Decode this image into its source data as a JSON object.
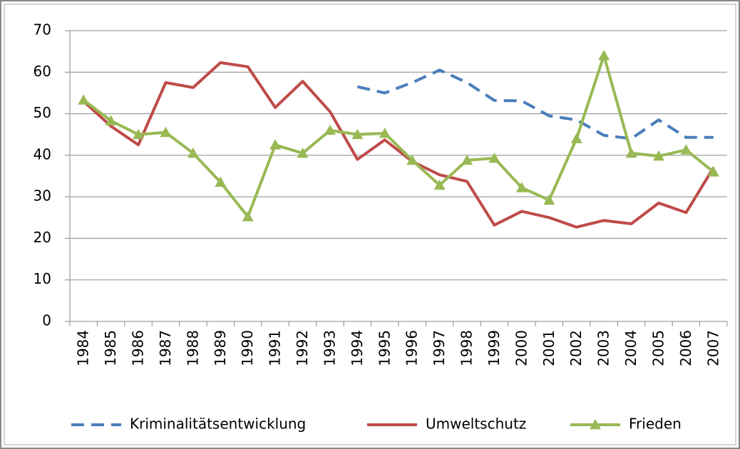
{
  "chart_data": {
    "type": "line",
    "categories": [
      "1984",
      "1985",
      "1986",
      "1987",
      "1988",
      "1989",
      "1990",
      "1991",
      "1992",
      "1993",
      "1994",
      "1995",
      "1996",
      "1997",
      "1998",
      "1999",
      "2000",
      "2001",
      "2002",
      "2003",
      "2004",
      "2005",
      "2006",
      "2007"
    ],
    "series": [
      {
        "name": "Kriminalitätsentwicklung",
        "color": "#4a7ebb",
        "dashed": true,
        "values": [
          null,
          null,
          null,
          null,
          null,
          null,
          null,
          null,
          null,
          null,
          56.5,
          55,
          57.5,
          60.5,
          57.5,
          53.2,
          53.1,
          49.5,
          48.5,
          44.8,
          44,
          48.5,
          44.3,
          44.3
        ]
      },
      {
        "name": "Umweltschutz",
        "color": "#be4b48",
        "values": [
          53,
          47,
          42.5,
          57.5,
          56.3,
          62.3,
          61.3,
          51.5,
          57.8,
          50.5,
          39,
          43.7,
          38.5,
          35.3,
          33.7,
          23.2,
          26.5,
          25,
          22.7,
          24.3,
          23.5,
          28.5,
          26.2,
          37
        ]
      },
      {
        "name": "Frieden",
        "color": "#98b954",
        "marker": "triangle",
        "values": [
          53.3,
          48.3,
          45,
          45.5,
          40.5,
          33.5,
          25.2,
          42.5,
          40.5,
          46,
          45,
          45.3,
          38.8,
          32.8,
          38.8,
          39.3,
          32.2,
          29.2,
          44,
          64,
          40.5,
          39.8,
          41.3,
          36
        ]
      }
    ],
    "ylim": [
      0,
      70
    ],
    "yticks": [
      0,
      10,
      20,
      30,
      40,
      50,
      60,
      70
    ],
    "grid": true,
    "legend": "bottom"
  }
}
